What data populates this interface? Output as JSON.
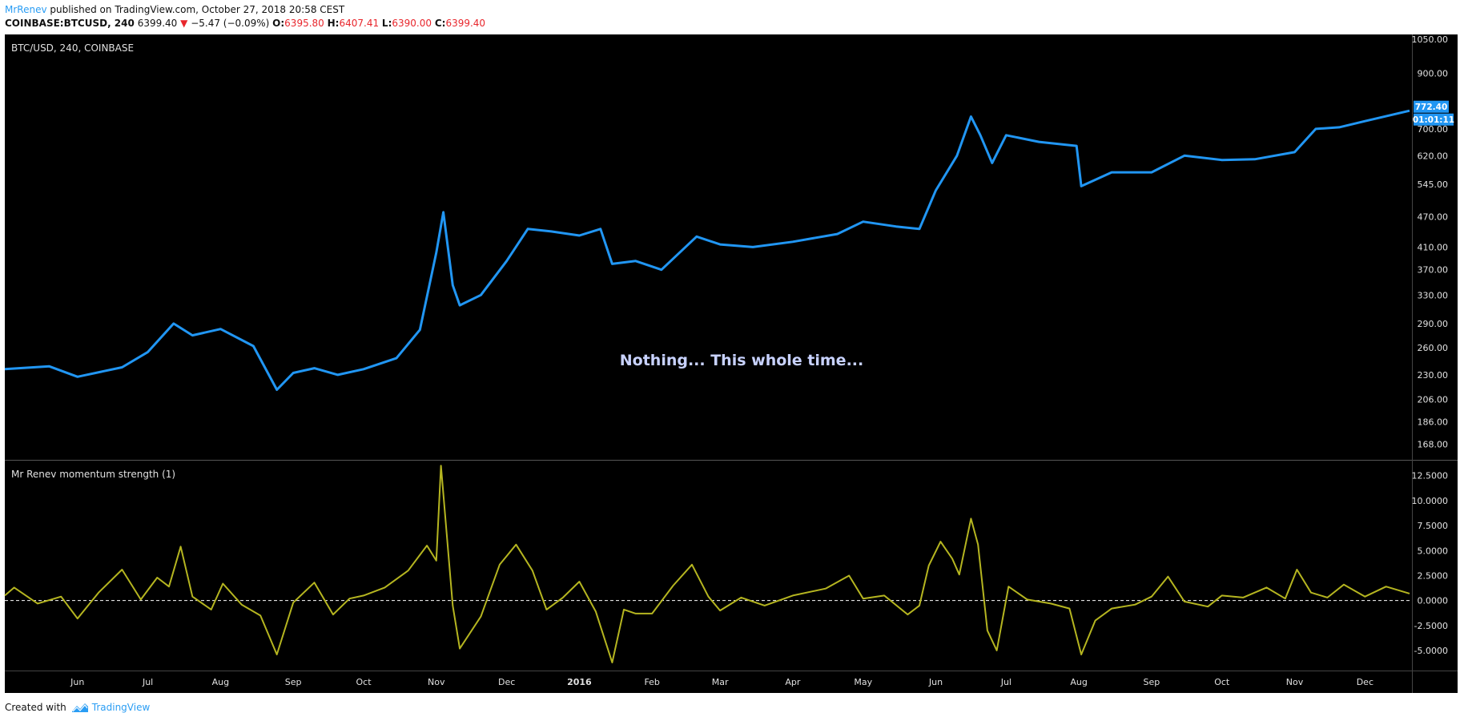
{
  "header": {
    "author": "MrRenev",
    "published_text": " published on TradingView.com, October 27, 2018 20:58 CEST"
  },
  "symbol_bar": {
    "symbol": "COINBASE:BTCUSD, 240",
    "last": "6399.40",
    "change": "−5.47 (−0.09%)",
    "o_label": "O:",
    "o": "6395.80",
    "h_label": "H:",
    "h": "6407.41",
    "l_label": "L:",
    "l": "6390.00",
    "c_label": "C:",
    "c": "6399.40",
    "down_color": "#e8262c"
  },
  "footer": {
    "created_with": "Created with",
    "brand": "TradingView"
  },
  "colors": {
    "chart_bg": "#000000",
    "price_line": "#2196f3",
    "indicator_line": "#b5b520",
    "axis_text": "#e0e0e0",
    "annotation_text": "#c8d2ff"
  },
  "chart_data": [
    {
      "type": "line",
      "title": "BTC/USD, 240, COINBASE",
      "annotation": "Nothing... This whole time...",
      "scale": "log",
      "ylim": [
        160,
        1050
      ],
      "yticks": [
        "1050.00",
        "900.00",
        "700.00",
        "620.00",
        "545.00",
        "470.00",
        "410.00",
        "370.00",
        "330.00",
        "290.00",
        "260.00",
        "230.00",
        "206.00",
        "186.00",
        "168.00"
      ],
      "ytick_values": [
        1050,
        900,
        700,
        620,
        545,
        470,
        410,
        370,
        330,
        290,
        260,
        230,
        206,
        186,
        168
      ],
      "last_price_label": "772.40",
      "countdown_label": "01:01:11",
      "x_range": [
        "2015-05-01",
        "2016-12-20"
      ],
      "x": [
        "2015-05-01",
        "2015-05-20",
        "2015-06-01",
        "2015-06-20",
        "2015-07-01",
        "2015-07-12",
        "2015-07-20",
        "2015-08-01",
        "2015-08-15",
        "2015-08-25",
        "2015-09-01",
        "2015-09-10",
        "2015-09-20",
        "2015-10-01",
        "2015-10-15",
        "2015-10-25",
        "2015-11-01",
        "2015-11-04",
        "2015-11-08",
        "2015-11-11",
        "2015-11-20",
        "2015-12-01",
        "2015-12-10",
        "2015-12-20",
        "2016-01-01",
        "2016-01-10",
        "2016-01-15",
        "2016-01-25",
        "2016-02-05",
        "2016-02-20",
        "2016-03-01",
        "2016-03-15",
        "2016-04-01",
        "2016-04-20",
        "2016-05-01",
        "2016-05-15",
        "2016-05-25",
        "2016-06-01",
        "2016-06-10",
        "2016-06-16",
        "2016-06-20",
        "2016-06-25",
        "2016-07-01",
        "2016-07-15",
        "2016-07-31",
        "2016-08-02",
        "2016-08-15",
        "2016-09-01",
        "2016-09-15",
        "2016-10-01",
        "2016-10-15",
        "2016-11-01",
        "2016-11-10",
        "2016-11-20",
        "2016-12-01",
        "2016-12-20"
      ],
      "series": [
        {
          "values": [
            236,
            239,
            228,
            238,
            255,
            290,
            275,
            283,
            262,
            215,
            232,
            237,
            230,
            236,
            248,
            282,
            400,
            480,
            345,
            315,
            330,
            385,
            445,
            440,
            432,
            445,
            380,
            385,
            370,
            430,
            415,
            410,
            420,
            435,
            460,
            450,
            445,
            530,
            620,
            740,
            680,
            600,
            680,
            660,
            648,
            540,
            575,
            575,
            620,
            608,
            610,
            630,
            700,
            705,
            725,
            760
          ]
        }
      ]
    },
    {
      "type": "line",
      "title": "Mr Renev momentum strength (1)",
      "ylim": [
        -7,
        14
      ],
      "yticks": [
        "12.5000",
        "10.0000",
        "7.5000",
        "5.0000",
        "2.5000",
        "0.0000",
        "-2.5000",
        "-5.0000"
      ],
      "ytick_values": [
        12.5,
        10,
        7.5,
        5,
        2.5,
        0,
        -2.5,
        -5
      ],
      "zero_line": true,
      "x_range": [
        "2015-05-01",
        "2016-12-20"
      ],
      "x": [
        "2015-05-01",
        "2015-05-05",
        "2015-05-15",
        "2015-05-25",
        "2015-06-01",
        "2015-06-10",
        "2015-06-20",
        "2015-06-28",
        "2015-07-05",
        "2015-07-10",
        "2015-07-15",
        "2015-07-20",
        "2015-07-28",
        "2015-08-02",
        "2015-08-10",
        "2015-08-18",
        "2015-08-25",
        "2015-09-01",
        "2015-09-10",
        "2015-09-18",
        "2015-09-25",
        "2015-10-01",
        "2015-10-10",
        "2015-10-20",
        "2015-10-28",
        "2015-11-01",
        "2015-11-03",
        "2015-11-08",
        "2015-11-11",
        "2015-11-20",
        "2015-11-28",
        "2015-12-05",
        "2015-12-12",
        "2015-12-18",
        "2015-12-25",
        "2016-01-01",
        "2016-01-08",
        "2016-01-15",
        "2016-01-20",
        "2016-01-25",
        "2016-02-01",
        "2016-02-10",
        "2016-02-18",
        "2016-02-25",
        "2016-03-01",
        "2016-03-10",
        "2016-03-20",
        "2016-04-01",
        "2016-04-15",
        "2016-04-25",
        "2016-05-01",
        "2016-05-10",
        "2016-05-20",
        "2016-05-25",
        "2016-05-29",
        "2016-06-03",
        "2016-06-08",
        "2016-06-11",
        "2016-06-16",
        "2016-06-19",
        "2016-06-23",
        "2016-06-27",
        "2016-07-02",
        "2016-07-10",
        "2016-07-20",
        "2016-07-28",
        "2016-08-02",
        "2016-08-08",
        "2016-08-15",
        "2016-08-25",
        "2016-09-01",
        "2016-09-08",
        "2016-09-15",
        "2016-09-25",
        "2016-10-01",
        "2016-10-10",
        "2016-10-20",
        "2016-10-28",
        "2016-11-02",
        "2016-11-08",
        "2016-11-15",
        "2016-11-22",
        "2016-12-01",
        "2016-12-10",
        "2016-12-20"
      ],
      "series": [
        {
          "values": [
            0.5,
            1.3,
            -0.3,
            0.4,
            -1.8,
            0.8,
            3.1,
            0.1,
            2.3,
            1.4,
            5.4,
            0.4,
            -0.9,
            1.7,
            -0.4,
            -1.5,
            -5.4,
            -0.2,
            1.8,
            -1.4,
            0.2,
            0.5,
            1.3,
            3.0,
            5.5,
            4.0,
            13.5,
            -0.5,
            -4.8,
            -1.6,
            3.6,
            5.6,
            3.0,
            -0.9,
            0.3,
            1.9,
            -1.1,
            -6.2,
            -0.9,
            -1.3,
            -1.3,
            1.5,
            3.6,
            0.4,
            -1.0,
            0.3,
            -0.5,
            0.5,
            1.2,
            2.5,
            0.2,
            0.5,
            -1.4,
            -0.5,
            3.5,
            5.9,
            4.2,
            2.6,
            8.2,
            5.6,
            -3.0,
            -5.0,
            1.4,
            0.1,
            -0.3,
            -0.8,
            -5.4,
            -2.0,
            -0.8,
            -0.4,
            0.4,
            2.4,
            -0.1,
            -0.6,
            0.5,
            0.3,
            1.3,
            0.2,
            3.1,
            0.8,
            0.3,
            1.6,
            0.4,
            1.4,
            0.7
          ]
        }
      ]
    }
  ],
  "x_axis": {
    "labels": [
      "Jun",
      "Jul",
      "Aug",
      "Sep",
      "Oct",
      "Nov",
      "Dec",
      "2016",
      "Feb",
      "Mar",
      "Apr",
      "May",
      "Jun",
      "Jul",
      "Aug",
      "Sep",
      "Oct",
      "Nov",
      "Dec"
    ],
    "dates": [
      "2015-06-01",
      "2015-07-01",
      "2015-08-01",
      "2015-09-01",
      "2015-10-01",
      "2015-11-01",
      "2015-12-01",
      "2016-01-01",
      "2016-02-01",
      "2016-03-01",
      "2016-04-01",
      "2016-05-01",
      "2016-06-01",
      "2016-07-01",
      "2016-08-01",
      "2016-09-01",
      "2016-10-01",
      "2016-11-01",
      "2016-12-01"
    ],
    "bold": [
      "2016"
    ]
  }
}
